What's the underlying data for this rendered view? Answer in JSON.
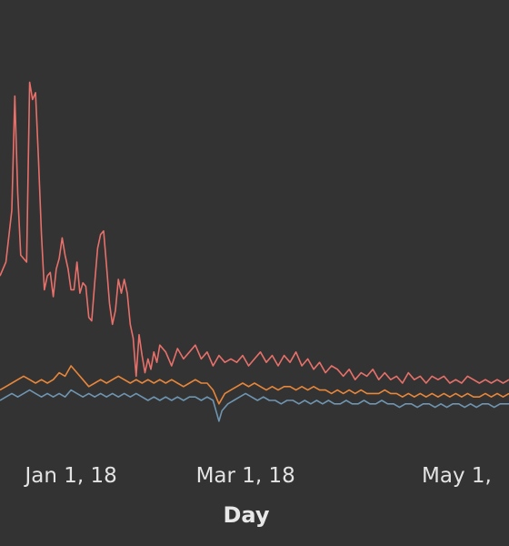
{
  "chart_data": {
    "type": "line",
    "xlabel": "Day",
    "x_ticks": [
      {
        "label": "Jan 1, 18",
        "date": "2018-01-01"
      },
      {
        "label": "Mar 1, 18",
        "date": "2018-03-01"
      },
      {
        "label": "May 1,",
        "date": "2018-05-01"
      }
    ],
    "xlim": [
      "2017-12-08",
      "2018-05-29"
    ],
    "ylim": [
      0,
      100
    ],
    "grid": false,
    "background": "#333333",
    "series": [
      {
        "color": "#e8706a",
        "points": [
          [
            "2017-12-08",
            36
          ],
          [
            "2017-12-10",
            40
          ],
          [
            "2017-12-12",
            55
          ],
          [
            "2017-12-13",
            88
          ],
          [
            "2017-12-14",
            60
          ],
          [
            "2017-12-15",
            42
          ],
          [
            "2017-12-17",
            40
          ],
          [
            "2017-12-18",
            92
          ],
          [
            "2017-12-19",
            87
          ],
          [
            "2017-12-20",
            89
          ],
          [
            "2017-12-21",
            70
          ],
          [
            "2017-12-22",
            48
          ],
          [
            "2017-12-23",
            32
          ],
          [
            "2017-12-24",
            36
          ],
          [
            "2017-12-25",
            37
          ],
          [
            "2017-12-26",
            30
          ],
          [
            "2017-12-27",
            38
          ],
          [
            "2017-12-28",
            41
          ],
          [
            "2017-12-29",
            47
          ],
          [
            "2017-12-30",
            42
          ],
          [
            "2017-12-31",
            38
          ],
          [
            "2018-01-01",
            32
          ],
          [
            "2018-01-02",
            32
          ],
          [
            "2018-01-03",
            40
          ],
          [
            "2018-01-04",
            31
          ],
          [
            "2018-01-05",
            34
          ],
          [
            "2018-01-06",
            33
          ],
          [
            "2018-01-07",
            24
          ],
          [
            "2018-01-08",
            23
          ],
          [
            "2018-01-09",
            34
          ],
          [
            "2018-01-10",
            44
          ],
          [
            "2018-01-11",
            48
          ],
          [
            "2018-01-12",
            49
          ],
          [
            "2018-01-13",
            39
          ],
          [
            "2018-01-14",
            28
          ],
          [
            "2018-01-15",
            22
          ],
          [
            "2018-01-16",
            26
          ],
          [
            "2018-01-17",
            35
          ],
          [
            "2018-01-18",
            31
          ],
          [
            "2018-01-19",
            35
          ],
          [
            "2018-01-20",
            31
          ],
          [
            "2018-01-21",
            22
          ],
          [
            "2018-01-22",
            18
          ],
          [
            "2018-01-23",
            7
          ],
          [
            "2018-01-24",
            19
          ],
          [
            "2018-01-25",
            13
          ],
          [
            "2018-01-26",
            8
          ],
          [
            "2018-01-27",
            12
          ],
          [
            "2018-01-28",
            9
          ],
          [
            "2018-01-29",
            14
          ],
          [
            "2018-01-30",
            11
          ],
          [
            "2018-01-31",
            16
          ],
          [
            "2018-02-02",
            14
          ],
          [
            "2018-02-04",
            10
          ],
          [
            "2018-02-06",
            15
          ],
          [
            "2018-02-08",
            12
          ],
          [
            "2018-02-10",
            14
          ],
          [
            "2018-02-12",
            16
          ],
          [
            "2018-02-14",
            12
          ],
          [
            "2018-02-16",
            14
          ],
          [
            "2018-02-18",
            10
          ],
          [
            "2018-02-20",
            13
          ],
          [
            "2018-02-22",
            11
          ],
          [
            "2018-02-24",
            12
          ],
          [
            "2018-02-26",
            11
          ],
          [
            "2018-02-28",
            13
          ],
          [
            "2018-03-02",
            10
          ],
          [
            "2018-03-04",
            12
          ],
          [
            "2018-03-06",
            14
          ],
          [
            "2018-03-08",
            11
          ],
          [
            "2018-03-10",
            13
          ],
          [
            "2018-03-12",
            10
          ],
          [
            "2018-03-14",
            13
          ],
          [
            "2018-03-16",
            11
          ],
          [
            "2018-03-18",
            14
          ],
          [
            "2018-03-20",
            10
          ],
          [
            "2018-03-22",
            12
          ],
          [
            "2018-03-24",
            9
          ],
          [
            "2018-03-26",
            11
          ],
          [
            "2018-03-28",
            8
          ],
          [
            "2018-03-30",
            10
          ],
          [
            "2018-04-01",
            9
          ],
          [
            "2018-04-03",
            7
          ],
          [
            "2018-04-05",
            9
          ],
          [
            "2018-04-07",
            6
          ],
          [
            "2018-04-09",
            8
          ],
          [
            "2018-04-11",
            7
          ],
          [
            "2018-04-13",
            9
          ],
          [
            "2018-04-15",
            6
          ],
          [
            "2018-04-17",
            8
          ],
          [
            "2018-04-19",
            6
          ],
          [
            "2018-04-21",
            7
          ],
          [
            "2018-04-23",
            5
          ],
          [
            "2018-04-25",
            8
          ],
          [
            "2018-04-27",
            6
          ],
          [
            "2018-04-29",
            7
          ],
          [
            "2018-05-01",
            5
          ],
          [
            "2018-05-03",
            7
          ],
          [
            "2018-05-05",
            6
          ],
          [
            "2018-05-07",
            7
          ],
          [
            "2018-05-09",
            5
          ],
          [
            "2018-05-11",
            6
          ],
          [
            "2018-05-13",
            5
          ],
          [
            "2018-05-15",
            7
          ],
          [
            "2018-05-17",
            6
          ],
          [
            "2018-05-19",
            5
          ],
          [
            "2018-05-21",
            6
          ],
          [
            "2018-05-23",
            5
          ],
          [
            "2018-05-25",
            6
          ],
          [
            "2018-05-27",
            5
          ],
          [
            "2018-05-29",
            6
          ]
        ]
      },
      {
        "color": "#e8863a",
        "points": [
          [
            "2017-12-08",
            3
          ],
          [
            "2017-12-10",
            4
          ],
          [
            "2017-12-12",
            5
          ],
          [
            "2017-12-14",
            6
          ],
          [
            "2017-12-16",
            7
          ],
          [
            "2017-12-18",
            6
          ],
          [
            "2017-12-20",
            5
          ],
          [
            "2017-12-22",
            6
          ],
          [
            "2017-12-24",
            5
          ],
          [
            "2017-12-26",
            6
          ],
          [
            "2017-12-28",
            8
          ],
          [
            "2017-12-30",
            7
          ],
          [
            "2018-01-01",
            10
          ],
          [
            "2018-01-03",
            8
          ],
          [
            "2018-01-05",
            6
          ],
          [
            "2018-01-07",
            4
          ],
          [
            "2018-01-09",
            5
          ],
          [
            "2018-01-11",
            6
          ],
          [
            "2018-01-13",
            5
          ],
          [
            "2018-01-15",
            6
          ],
          [
            "2018-01-17",
            7
          ],
          [
            "2018-01-19",
            6
          ],
          [
            "2018-01-21",
            5
          ],
          [
            "2018-01-23",
            6
          ],
          [
            "2018-01-25",
            5
          ],
          [
            "2018-01-27",
            6
          ],
          [
            "2018-01-29",
            5
          ],
          [
            "2018-01-31",
            6
          ],
          [
            "2018-02-02",
            5
          ],
          [
            "2018-02-04",
            6
          ],
          [
            "2018-02-06",
            5
          ],
          [
            "2018-02-08",
            4
          ],
          [
            "2018-02-10",
            5
          ],
          [
            "2018-02-12",
            6
          ],
          [
            "2018-02-14",
            5
          ],
          [
            "2018-02-16",
            5
          ],
          [
            "2018-02-18",
            3
          ],
          [
            "2018-02-20",
            -1
          ],
          [
            "2018-02-22",
            2
          ],
          [
            "2018-02-24",
            3
          ],
          [
            "2018-02-26",
            4
          ],
          [
            "2018-02-28",
            5
          ],
          [
            "2018-03-02",
            4
          ],
          [
            "2018-03-04",
            5
          ],
          [
            "2018-03-06",
            4
          ],
          [
            "2018-03-08",
            3
          ],
          [
            "2018-03-10",
            4
          ],
          [
            "2018-03-12",
            3
          ],
          [
            "2018-03-14",
            4
          ],
          [
            "2018-03-16",
            4
          ],
          [
            "2018-03-18",
            3
          ],
          [
            "2018-03-20",
            4
          ],
          [
            "2018-03-22",
            3
          ],
          [
            "2018-03-24",
            4
          ],
          [
            "2018-03-26",
            3
          ],
          [
            "2018-03-28",
            3
          ],
          [
            "2018-03-30",
            2
          ],
          [
            "2018-04-01",
            3
          ],
          [
            "2018-04-03",
            2
          ],
          [
            "2018-04-05",
            3
          ],
          [
            "2018-04-07",
            2
          ],
          [
            "2018-04-09",
            3
          ],
          [
            "2018-04-11",
            2
          ],
          [
            "2018-04-13",
            2
          ],
          [
            "2018-04-15",
            2
          ],
          [
            "2018-04-17",
            3
          ],
          [
            "2018-04-19",
            2
          ],
          [
            "2018-04-21",
            2
          ],
          [
            "2018-04-23",
            1
          ],
          [
            "2018-04-25",
            2
          ],
          [
            "2018-04-27",
            1
          ],
          [
            "2018-04-29",
            2
          ],
          [
            "2018-05-01",
            1
          ],
          [
            "2018-05-03",
            2
          ],
          [
            "2018-05-05",
            1
          ],
          [
            "2018-05-07",
            2
          ],
          [
            "2018-05-09",
            1
          ],
          [
            "2018-05-11",
            2
          ],
          [
            "2018-05-13",
            1
          ],
          [
            "2018-05-15",
            2
          ],
          [
            "2018-05-17",
            1
          ],
          [
            "2018-05-19",
            1
          ],
          [
            "2018-05-21",
            2
          ],
          [
            "2018-05-23",
            1
          ],
          [
            "2018-05-25",
            2
          ],
          [
            "2018-05-27",
            1
          ],
          [
            "2018-05-29",
            2
          ]
        ]
      },
      {
        "color": "#6f95b1",
        "points": [
          [
            "2017-12-08",
            0
          ],
          [
            "2017-12-10",
            1
          ],
          [
            "2017-12-12",
            2
          ],
          [
            "2017-12-14",
            1
          ],
          [
            "2017-12-16",
            2
          ],
          [
            "2017-12-18",
            3
          ],
          [
            "2017-12-20",
            2
          ],
          [
            "2017-12-22",
            1
          ],
          [
            "2017-12-24",
            2
          ],
          [
            "2017-12-26",
            1
          ],
          [
            "2017-12-28",
            2
          ],
          [
            "2017-12-30",
            1
          ],
          [
            "2018-01-01",
            3
          ],
          [
            "2018-01-03",
            2
          ],
          [
            "2018-01-05",
            1
          ],
          [
            "2018-01-07",
            2
          ],
          [
            "2018-01-09",
            1
          ],
          [
            "2018-01-11",
            2
          ],
          [
            "2018-01-13",
            1
          ],
          [
            "2018-01-15",
            2
          ],
          [
            "2018-01-17",
            1
          ],
          [
            "2018-01-19",
            2
          ],
          [
            "2018-01-21",
            1
          ],
          [
            "2018-01-23",
            2
          ],
          [
            "2018-01-25",
            1
          ],
          [
            "2018-01-27",
            0
          ],
          [
            "2018-01-29",
            1
          ],
          [
            "2018-01-31",
            0
          ],
          [
            "2018-02-02",
            1
          ],
          [
            "2018-02-04",
            0
          ],
          [
            "2018-02-06",
            1
          ],
          [
            "2018-02-08",
            0
          ],
          [
            "2018-02-10",
            1
          ],
          [
            "2018-02-12",
            1
          ],
          [
            "2018-02-14",
            0
          ],
          [
            "2018-02-16",
            1
          ],
          [
            "2018-02-18",
            0
          ],
          [
            "2018-02-20",
            -6
          ],
          [
            "2018-02-21",
            -3
          ],
          [
            "2018-02-23",
            -1
          ],
          [
            "2018-02-25",
            0
          ],
          [
            "2018-02-27",
            1
          ],
          [
            "2018-03-01",
            2
          ],
          [
            "2018-03-03",
            1
          ],
          [
            "2018-03-05",
            0
          ],
          [
            "2018-03-07",
            1
          ],
          [
            "2018-03-09",
            0
          ],
          [
            "2018-03-11",
            0
          ],
          [
            "2018-03-13",
            -1
          ],
          [
            "2018-03-15",
            0
          ],
          [
            "2018-03-17",
            0
          ],
          [
            "2018-03-19",
            -1
          ],
          [
            "2018-03-21",
            0
          ],
          [
            "2018-03-23",
            -1
          ],
          [
            "2018-03-25",
            0
          ],
          [
            "2018-03-27",
            -1
          ],
          [
            "2018-03-29",
            0
          ],
          [
            "2018-03-31",
            -1
          ],
          [
            "2018-04-02",
            -1
          ],
          [
            "2018-04-04",
            0
          ],
          [
            "2018-04-06",
            -1
          ],
          [
            "2018-04-08",
            -1
          ],
          [
            "2018-04-10",
            0
          ],
          [
            "2018-04-12",
            -1
          ],
          [
            "2018-04-14",
            -1
          ],
          [
            "2018-04-16",
            0
          ],
          [
            "2018-04-18",
            -1
          ],
          [
            "2018-04-20",
            -1
          ],
          [
            "2018-04-22",
            -2
          ],
          [
            "2018-04-24",
            -1
          ],
          [
            "2018-04-26",
            -1
          ],
          [
            "2018-04-28",
            -2
          ],
          [
            "2018-04-30",
            -1
          ],
          [
            "2018-05-02",
            -1
          ],
          [
            "2018-05-04",
            -2
          ],
          [
            "2018-05-06",
            -1
          ],
          [
            "2018-05-08",
            -2
          ],
          [
            "2018-05-10",
            -1
          ],
          [
            "2018-05-12",
            -1
          ],
          [
            "2018-05-14",
            -2
          ],
          [
            "2018-05-16",
            -1
          ],
          [
            "2018-05-18",
            -2
          ],
          [
            "2018-05-20",
            -1
          ],
          [
            "2018-05-22",
            -1
          ],
          [
            "2018-05-24",
            -2
          ],
          [
            "2018-05-26",
            -1
          ],
          [
            "2018-05-29",
            -1
          ]
        ]
      }
    ]
  }
}
